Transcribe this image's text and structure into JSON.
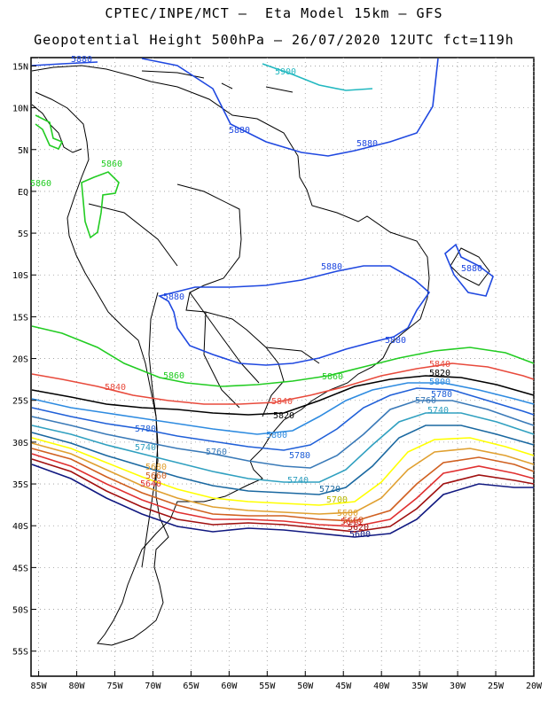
{
  "header": {
    "line1": "CPTEC/INPE/MCT –  Eta Model 15km – GFS",
    "line2": "Geopotential Height 500hPa – 26/07/2020 12UTC fct=119h"
  },
  "map": {
    "lon_range": [
      -86,
      -20
    ],
    "lat_range": [
      -58,
      16
    ],
    "lat_ticks": [
      "15N",
      "10N",
      "5N",
      "EQ",
      "5S",
      "10S",
      "15S",
      "20S",
      "25S",
      "30S",
      "35S",
      "40S",
      "45S",
      "50S",
      "55S"
    ],
    "lon_ticks": [
      "85W",
      "80W",
      "75W",
      "70W",
      "65W",
      "60W",
      "55W",
      "50W",
      "45W",
      "40W",
      "35W",
      "30W",
      "25W",
      "20W"
    ],
    "grid": "dotted",
    "contour_colors": {
      "5900": "#22b8c0",
      "5880": "#1f48e0",
      "5860": "#22cc22",
      "5840": "#e84a3c",
      "5820": "#000000",
      "5800": "#2e8be0",
      "5780": "#2060d8",
      "5760": "#3a7ab8",
      "5740": "#30a0c0",
      "5720": "#1a68a0",
      "5700": "#ffff00",
      "5680": "#e0a030",
      "5660": "#d06020",
      "5640": "#e03030",
      "5620": "#a01010",
      "5600": "#101880"
    },
    "contour_labels": [
      {
        "text": "5900",
        "level": "5900"
      },
      {
        "text": "5880",
        "level": "5880"
      },
      {
        "text": "5880",
        "level": "5880"
      },
      {
        "text": "5880",
        "level": "5880"
      },
      {
        "text": "5880",
        "level": "5880"
      },
      {
        "text": "5880",
        "level": "5880"
      },
      {
        "text": "5880",
        "level": "5880"
      },
      {
        "text": "5880",
        "level": "5880"
      },
      {
        "text": "5860",
        "level": "5860"
      },
      {
        "text": "5860",
        "level": "5860"
      },
      {
        "text": "5860",
        "level": "5860"
      },
      {
        "text": "5860",
        "level": "5860"
      },
      {
        "text": "5840",
        "level": "5840"
      },
      {
        "text": "5840",
        "level": "5840"
      },
      {
        "text": "5840",
        "level": "5840"
      },
      {
        "text": "5820",
        "level": "5820"
      },
      {
        "text": "5820",
        "level": "5820"
      },
      {
        "text": "5800",
        "level": "5800"
      },
      {
        "text": "5800",
        "level": "5800"
      },
      {
        "text": "5780",
        "level": "5780"
      },
      {
        "text": "5780",
        "level": "5780"
      },
      {
        "text": "5780",
        "level": "5780"
      },
      {
        "text": "5760",
        "level": "5760"
      },
      {
        "text": "5760",
        "level": "5760"
      },
      {
        "text": "5740",
        "level": "5740"
      },
      {
        "text": "5740",
        "level": "5740"
      },
      {
        "text": "5740",
        "level": "5740"
      },
      {
        "text": "5720",
        "level": "5720"
      },
      {
        "text": "5700",
        "level": "5700"
      },
      {
        "text": "5680",
        "level": "5680"
      },
      {
        "text": "5660",
        "level": "5660"
      },
      {
        "text": "5640",
        "level": "5640"
      },
      {
        "text": "5640",
        "level": "5640"
      },
      {
        "text": "5620",
        "level": "5620"
      },
      {
        "text": "5600",
        "level": "5600"
      },
      {
        "text": "5680",
        "level": "5680"
      },
      {
        "text": "5660",
        "level": "5660"
      }
    ]
  }
}
